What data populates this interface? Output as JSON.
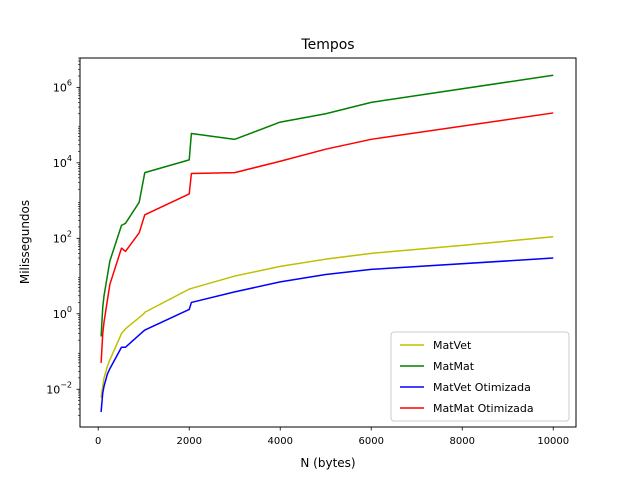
{
  "chart_data": {
    "type": "line",
    "title": "Tempos",
    "xlabel": "N (bytes)",
    "ylabel": "Milissegundos",
    "xlim": [
      -400,
      10500
    ],
    "yscale": "log",
    "ylim": [
      0.001,
      6000000
    ],
    "xticks": [
      {
        "value": 0,
        "label": "0"
      },
      {
        "value": 2000,
        "label": "2000"
      },
      {
        "value": 4000,
        "label": "4000"
      },
      {
        "value": 6000,
        "label": "6000"
      },
      {
        "value": 8000,
        "label": "8000"
      },
      {
        "value": 10000,
        "label": "10000"
      }
    ],
    "yticks": [
      {
        "value": 0.01,
        "base": "10",
        "exp": "−2"
      },
      {
        "value": 1,
        "base": "10",
        "exp": "0"
      },
      {
        "value": 100,
        "base": "10",
        "exp": "2"
      },
      {
        "value": 10000,
        "base": "10",
        "exp": "4"
      },
      {
        "value": 1000000,
        "base": "10",
        "exp": "6"
      }
    ],
    "grid": false,
    "legend_position": "lower-right",
    "series": [
      {
        "name": "MatVet",
        "color": "#bfbf00",
        "points": [
          [
            64,
            0.006
          ],
          [
            100,
            0.012
          ],
          [
            128,
            0.02
          ],
          [
            200,
            0.04
          ],
          [
            256,
            0.06
          ],
          [
            512,
            0.3
          ],
          [
            600,
            0.4
          ],
          [
            1000,
            1.0
          ],
          [
            1024,
            1.1
          ],
          [
            2000,
            4.5
          ],
          [
            2048,
            4.7
          ],
          [
            3000,
            10
          ],
          [
            4000,
            18
          ],
          [
            5000,
            28
          ],
          [
            6000,
            40
          ],
          [
            8000,
            65
          ],
          [
            10000,
            110
          ]
        ]
      },
      {
        "name": "MatMat",
        "color": "#008000",
        "points": [
          [
            64,
            0.25
          ],
          [
            100,
            1.5
          ],
          [
            128,
            3
          ],
          [
            256,
            25
          ],
          [
            512,
            220
          ],
          [
            600,
            250
          ],
          [
            900,
            900
          ],
          [
            1024,
            5500
          ],
          [
            2000,
            12000
          ],
          [
            2048,
            60000
          ],
          [
            3000,
            42000
          ],
          [
            4000,
            120000
          ],
          [
            5000,
            200000
          ],
          [
            6000,
            400000
          ],
          [
            10000,
            2100000
          ]
        ]
      },
      {
        "name": "MatVet Otimizada",
        "color": "#0000ff",
        "points": [
          [
            64,
            0.0025
          ],
          [
            100,
            0.008
          ],
          [
            128,
            0.012
          ],
          [
            200,
            0.025
          ],
          [
            256,
            0.035
          ],
          [
            512,
            0.13
          ],
          [
            600,
            0.13
          ],
          [
            1000,
            0.35
          ],
          [
            1024,
            0.37
          ],
          [
            2000,
            1.3
          ],
          [
            2048,
            2.0
          ],
          [
            3000,
            3.8
          ],
          [
            4000,
            7
          ],
          [
            5000,
            11
          ],
          [
            6000,
            15
          ],
          [
            10000,
            30
          ]
        ]
      },
      {
        "name": "MatMat Otimizada",
        "color": "#ff0000",
        "points": [
          [
            64,
            0.05
          ],
          [
            100,
            0.3
          ],
          [
            128,
            0.6
          ],
          [
            256,
            6
          ],
          [
            512,
            55
          ],
          [
            600,
            45
          ],
          [
            900,
            140
          ],
          [
            1024,
            420
          ],
          [
            2000,
            1500
          ],
          [
            2048,
            5200
          ],
          [
            3000,
            5500
          ],
          [
            4000,
            11000
          ],
          [
            5000,
            23000
          ],
          [
            6000,
            42000
          ],
          [
            10000,
            210000
          ]
        ]
      }
    ]
  }
}
